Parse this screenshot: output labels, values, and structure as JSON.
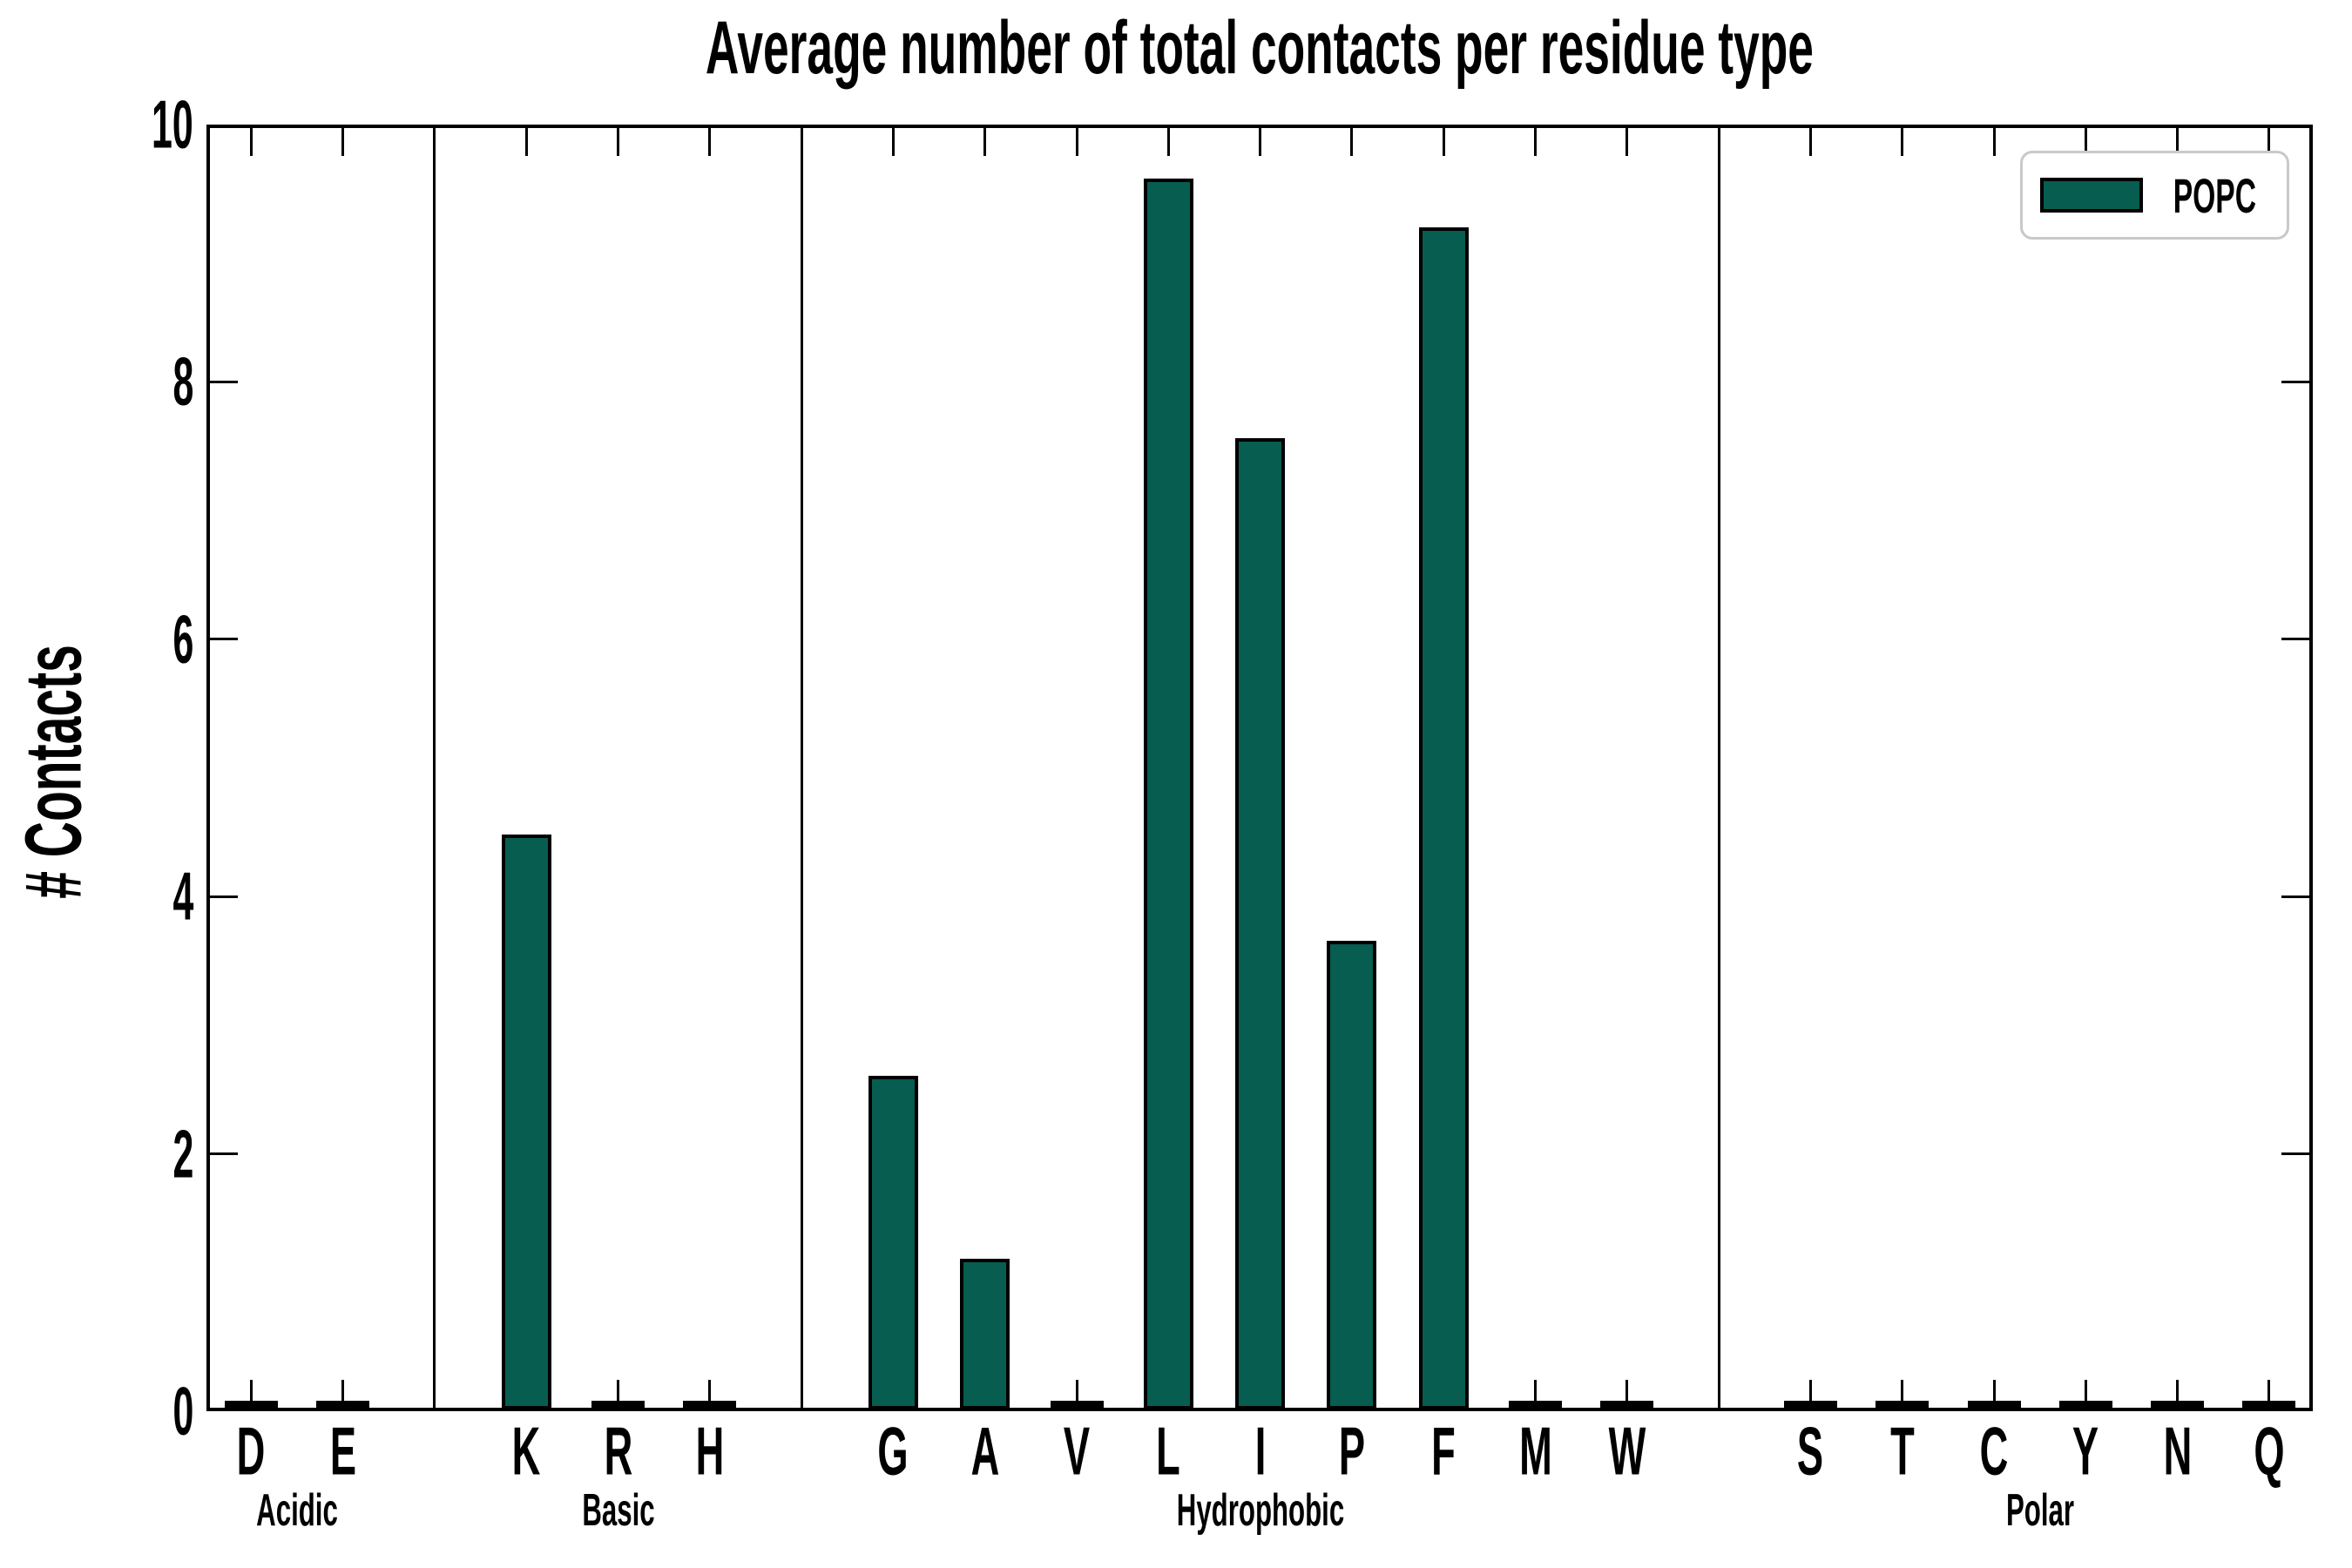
{
  "title": "Average number of total contacts per residue type",
  "ylabel": "# Contacts",
  "legend": {
    "label": "POPC"
  },
  "colors": {
    "bar_fill": "#075d50",
    "bar_edge": "#000000",
    "axis": "#000000",
    "legend_border": "#c9c9c9",
    "background": "#ffffff"
  },
  "chart_data": {
    "type": "bar",
    "title": "Average number of total contacts per residue type",
    "xlabel": "",
    "ylabel": "# Contacts",
    "ylim": [
      0,
      10
    ],
    "yticks": [
      0,
      2,
      4,
      6,
      8,
      10
    ],
    "grid": false,
    "legend_position": "upper right",
    "series_name": "POPC",
    "groups": [
      {
        "label": "Acidic",
        "categories": [
          "D",
          "E"
        ],
        "values": [
          0,
          0
        ]
      },
      {
        "label": "Basic",
        "categories": [
          "K",
          "R",
          "H"
        ],
        "values": [
          4.47,
          0,
          0
        ]
      },
      {
        "label": "Hydrophobic",
        "categories": [
          "G",
          "A",
          "V",
          "L",
          "I",
          "P",
          "F",
          "M",
          "W"
        ],
        "values": [
          2.59,
          1.17,
          0,
          9.57,
          7.55,
          3.64,
          9.19,
          0,
          0
        ]
      },
      {
        "label": "Polar",
        "categories": [
          "S",
          "T",
          "C",
          "Y",
          "N",
          "Q"
        ],
        "values": [
          0,
          0,
          0,
          0,
          0,
          0
        ]
      }
    ]
  }
}
